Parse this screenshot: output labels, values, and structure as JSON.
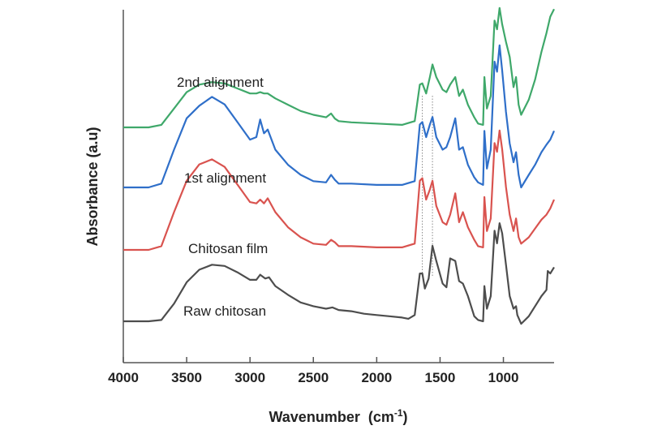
{
  "chart_data": {
    "type": "line",
    "xlabel": "Wavenumber",
    "xlabel_unit": "(cm",
    "xlabel_unit_sup": "-1",
    "xlabel_unit_close": ")",
    "ylabel": "Absorbance (a.u)",
    "xlim": [
      4000,
      600
    ],
    "x_reversed": true,
    "y_ticks": false,
    "grid": false,
    "legend": "inline-labels",
    "xticks": [
      "4000",
      "3500",
      "3000",
      "2500",
      "2000",
      "1500",
      "1000"
    ],
    "xtick_values": [
      4000,
      3500,
      3000,
      2500,
      2000,
      1500,
      1000
    ],
    "reference_lines_x": [
      1640,
      1560
    ],
    "series": [
      {
        "name": "Raw chitosan",
        "color": "#4d4d4d",
        "points": [
          [
            4000,
            0.0
          ],
          [
            3800,
            0.0
          ],
          [
            3700,
            0.01
          ],
          [
            3600,
            0.14
          ],
          [
            3500,
            0.31
          ],
          [
            3400,
            0.41
          ],
          [
            3300,
            0.45
          ],
          [
            3200,
            0.44
          ],
          [
            3100,
            0.39
          ],
          [
            3000,
            0.33
          ],
          [
            2950,
            0.33
          ],
          [
            2920,
            0.37
          ],
          [
            2880,
            0.34
          ],
          [
            2850,
            0.35
          ],
          [
            2800,
            0.28
          ],
          [
            2700,
            0.21
          ],
          [
            2600,
            0.15
          ],
          [
            2500,
            0.12
          ],
          [
            2400,
            0.1
          ],
          [
            2350,
            0.11
          ],
          [
            2300,
            0.09
          ],
          [
            2200,
            0.08
          ],
          [
            2100,
            0.06
          ],
          [
            2000,
            0.05
          ],
          [
            1900,
            0.04
          ],
          [
            1800,
            0.03
          ],
          [
            1750,
            0.02
          ],
          [
            1700,
            0.05
          ],
          [
            1660,
            0.38
          ],
          [
            1640,
            0.38
          ],
          [
            1620,
            0.26
          ],
          [
            1590,
            0.34
          ],
          [
            1560,
            0.6
          ],
          [
            1530,
            0.48
          ],
          [
            1480,
            0.3
          ],
          [
            1450,
            0.27
          ],
          [
            1420,
            0.5
          ],
          [
            1380,
            0.48
          ],
          [
            1350,
            0.32
          ],
          [
            1320,
            0.3
          ],
          [
            1280,
            0.2
          ],
          [
            1230,
            0.04
          ],
          [
            1200,
            0.01
          ],
          [
            1160,
            0.0
          ],
          [
            1150,
            0.28
          ],
          [
            1130,
            0.1
          ],
          [
            1100,
            0.2
          ],
          [
            1070,
            0.72
          ],
          [
            1050,
            0.62
          ],
          [
            1030,
            0.78
          ],
          [
            1010,
            0.7
          ],
          [
            980,
            0.45
          ],
          [
            950,
            0.2
          ],
          [
            920,
            0.1
          ],
          [
            900,
            0.12
          ],
          [
            890,
            0.05
          ],
          [
            860,
            -0.02
          ],
          [
            800,
            0.04
          ],
          [
            750,
            0.12
          ],
          [
            700,
            0.2
          ],
          [
            660,
            0.25
          ],
          [
            650,
            0.4
          ],
          [
            630,
            0.38
          ],
          [
            600,
            0.43
          ]
        ]
      },
      {
        "name": "Chitosan film",
        "color": "#d9534f",
        "points": [
          [
            4000,
            0.0
          ],
          [
            3800,
            0.0
          ],
          [
            3700,
            0.03
          ],
          [
            3600,
            0.3
          ],
          [
            3500,
            0.55
          ],
          [
            3400,
            0.68
          ],
          [
            3300,
            0.72
          ],
          [
            3200,
            0.66
          ],
          [
            3100,
            0.52
          ],
          [
            3000,
            0.38
          ],
          [
            2950,
            0.37
          ],
          [
            2920,
            0.4
          ],
          [
            2890,
            0.37
          ],
          [
            2860,
            0.41
          ],
          [
            2800,
            0.3
          ],
          [
            2700,
            0.18
          ],
          [
            2600,
            0.1
          ],
          [
            2500,
            0.05
          ],
          [
            2400,
            0.04
          ],
          [
            2360,
            0.08
          ],
          [
            2330,
            0.06
          ],
          [
            2300,
            0.03
          ],
          [
            2200,
            0.03
          ],
          [
            2000,
            0.02
          ],
          [
            1800,
            0.02
          ],
          [
            1700,
            0.05
          ],
          [
            1660,
            0.55
          ],
          [
            1640,
            0.57
          ],
          [
            1610,
            0.4
          ],
          [
            1580,
            0.48
          ],
          [
            1560,
            0.55
          ],
          [
            1530,
            0.35
          ],
          [
            1480,
            0.22
          ],
          [
            1450,
            0.2
          ],
          [
            1420,
            0.28
          ],
          [
            1380,
            0.45
          ],
          [
            1350,
            0.22
          ],
          [
            1320,
            0.3
          ],
          [
            1280,
            0.18
          ],
          [
            1230,
            0.08
          ],
          [
            1200,
            0.03
          ],
          [
            1160,
            0.02
          ],
          [
            1150,
            0.42
          ],
          [
            1130,
            0.15
          ],
          [
            1100,
            0.25
          ],
          [
            1070,
            0.85
          ],
          [
            1050,
            0.78
          ],
          [
            1030,
            0.95
          ],
          [
            1010,
            0.8
          ],
          [
            980,
            0.5
          ],
          [
            950,
            0.28
          ],
          [
            920,
            0.15
          ],
          [
            900,
            0.25
          ],
          [
            880,
            0.1
          ],
          [
            860,
            0.05
          ],
          [
            800,
            0.1
          ],
          [
            750,
            0.17
          ],
          [
            700,
            0.24
          ],
          [
            660,
            0.28
          ],
          [
            630,
            0.33
          ],
          [
            600,
            0.4
          ]
        ]
      },
      {
        "name": "1st alignment",
        "color": "#2f6fc9",
        "points": [
          [
            4000,
            0.0
          ],
          [
            3800,
            0.0
          ],
          [
            3700,
            0.03
          ],
          [
            3600,
            0.3
          ],
          [
            3500,
            0.55
          ],
          [
            3400,
            0.65
          ],
          [
            3300,
            0.72
          ],
          [
            3200,
            0.66
          ],
          [
            3100,
            0.52
          ],
          [
            3000,
            0.38
          ],
          [
            2950,
            0.4
          ],
          [
            2920,
            0.54
          ],
          [
            2890,
            0.43
          ],
          [
            2860,
            0.46
          ],
          [
            2800,
            0.3
          ],
          [
            2700,
            0.18
          ],
          [
            2600,
            0.1
          ],
          [
            2500,
            0.05
          ],
          [
            2400,
            0.04
          ],
          [
            2360,
            0.1
          ],
          [
            2330,
            0.06
          ],
          [
            2300,
            0.03
          ],
          [
            2200,
            0.03
          ],
          [
            2000,
            0.02
          ],
          [
            1800,
            0.02
          ],
          [
            1700,
            0.05
          ],
          [
            1660,
            0.5
          ],
          [
            1640,
            0.52
          ],
          [
            1610,
            0.4
          ],
          [
            1580,
            0.5
          ],
          [
            1560,
            0.56
          ],
          [
            1530,
            0.4
          ],
          [
            1480,
            0.3
          ],
          [
            1450,
            0.32
          ],
          [
            1420,
            0.4
          ],
          [
            1380,
            0.55
          ],
          [
            1350,
            0.3
          ],
          [
            1320,
            0.32
          ],
          [
            1280,
            0.18
          ],
          [
            1230,
            0.08
          ],
          [
            1200,
            0.04
          ],
          [
            1160,
            0.02
          ],
          [
            1150,
            0.45
          ],
          [
            1130,
            0.15
          ],
          [
            1100,
            0.3
          ],
          [
            1070,
            1.0
          ],
          [
            1050,
            0.92
          ],
          [
            1030,
            1.13
          ],
          [
            1010,
            0.93
          ],
          [
            980,
            0.6
          ],
          [
            950,
            0.35
          ],
          [
            920,
            0.2
          ],
          [
            900,
            0.28
          ],
          [
            880,
            0.1
          ],
          [
            860,
            0.0
          ],
          [
            800,
            0.1
          ],
          [
            750,
            0.18
          ],
          [
            700,
            0.28
          ],
          [
            660,
            0.34
          ],
          [
            630,
            0.38
          ],
          [
            600,
            0.45
          ]
        ]
      },
      {
        "name": "2nd alignment",
        "color": "#3fa86a",
        "points": [
          [
            4000,
            0.0
          ],
          [
            3800,
            0.0
          ],
          [
            3700,
            0.02
          ],
          [
            3600,
            0.15
          ],
          [
            3500,
            0.28
          ],
          [
            3400,
            0.34
          ],
          [
            3300,
            0.36
          ],
          [
            3200,
            0.35
          ],
          [
            3100,
            0.31
          ],
          [
            3000,
            0.27
          ],
          [
            2950,
            0.27
          ],
          [
            2920,
            0.28
          ],
          [
            2890,
            0.27
          ],
          [
            2860,
            0.27
          ],
          [
            2800,
            0.23
          ],
          [
            2700,
            0.18
          ],
          [
            2600,
            0.13
          ],
          [
            2500,
            0.1
          ],
          [
            2400,
            0.08
          ],
          [
            2360,
            0.11
          ],
          [
            2330,
            0.07
          ],
          [
            2300,
            0.05
          ],
          [
            2200,
            0.04
          ],
          [
            2000,
            0.03
          ],
          [
            1800,
            0.02
          ],
          [
            1700,
            0.05
          ],
          [
            1660,
            0.34
          ],
          [
            1640,
            0.35
          ],
          [
            1610,
            0.27
          ],
          [
            1580,
            0.4
          ],
          [
            1560,
            0.5
          ],
          [
            1530,
            0.4
          ],
          [
            1480,
            0.3
          ],
          [
            1450,
            0.28
          ],
          [
            1420,
            0.34
          ],
          [
            1380,
            0.4
          ],
          [
            1350,
            0.25
          ],
          [
            1320,
            0.3
          ],
          [
            1280,
            0.18
          ],
          [
            1230,
            0.08
          ],
          [
            1200,
            0.03
          ],
          [
            1160,
            0.02
          ],
          [
            1150,
            0.4
          ],
          [
            1130,
            0.15
          ],
          [
            1100,
            0.25
          ],
          [
            1070,
            0.85
          ],
          [
            1050,
            0.78
          ],
          [
            1030,
            0.95
          ],
          [
            1010,
            0.82
          ],
          [
            980,
            0.68
          ],
          [
            950,
            0.56
          ],
          [
            920,
            0.32
          ],
          [
            900,
            0.4
          ],
          [
            880,
            0.18
          ],
          [
            860,
            0.1
          ],
          [
            800,
            0.22
          ],
          [
            750,
            0.38
          ],
          [
            700,
            0.6
          ],
          [
            660,
            0.75
          ],
          [
            630,
            0.88
          ],
          [
            600,
            0.94
          ]
        ]
      }
    ]
  }
}
